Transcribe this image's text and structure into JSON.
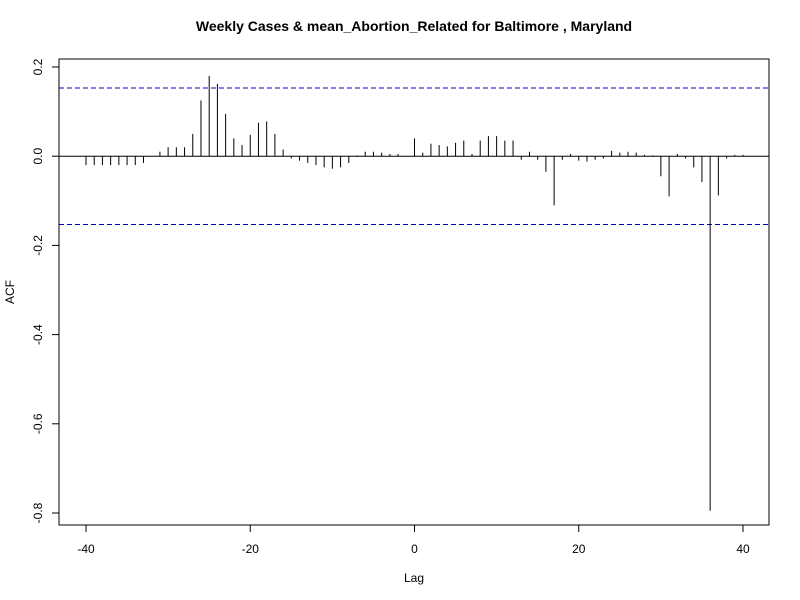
{
  "chart_data": {
    "type": "bar",
    "title": "Weekly Cases & mean_Abortion_Related for Baltimore , Maryland",
    "xlabel": "Lag",
    "ylabel": "ACF",
    "xlim": [
      -40,
      40
    ],
    "ylim": [
      -0.8,
      0.2
    ],
    "x_ticks": [
      -40,
      -20,
      0,
      20,
      40
    ],
    "y_ticks": [
      -0.8,
      -0.6,
      -0.4,
      -0.2,
      0.0,
      0.2
    ],
    "x_tick_labels": [
      "-40",
      "-20",
      "0",
      "20",
      "40"
    ],
    "y_tick_labels": [
      "-0.8",
      "-0.6",
      "-0.4",
      "-0.2",
      "0.0",
      "0.2"
    ],
    "confidence_bounds": [
      0.153,
      -0.153
    ],
    "colors": {
      "bars": "#000000",
      "bounds": "#0000cc",
      "zero_line": "#000000"
    },
    "lags": [
      -40,
      -39,
      -38,
      -37,
      -36,
      -35,
      -34,
      -33,
      -32,
      -31,
      -30,
      -29,
      -28,
      -27,
      -26,
      -25,
      -24,
      -23,
      -22,
      -21,
      -20,
      -19,
      -18,
      -17,
      -16,
      -15,
      -14,
      -13,
      -12,
      -11,
      -10,
      -9,
      -8,
      -7,
      -6,
      -5,
      -4,
      -3,
      -2,
      -1,
      0,
      1,
      2,
      3,
      4,
      5,
      6,
      7,
      8,
      9,
      10,
      11,
      12,
      13,
      14,
      15,
      16,
      17,
      18,
      19,
      20,
      21,
      22,
      23,
      24,
      25,
      26,
      27,
      28,
      29,
      30,
      31,
      32,
      33,
      34,
      35,
      36,
      37,
      38,
      39,
      40
    ],
    "values": [
      -0.02,
      -0.02,
      -0.02,
      -0.02,
      -0.02,
      -0.02,
      -0.02,
      -0.015,
      0.0,
      0.01,
      0.02,
      0.02,
      0.02,
      0.05,
      0.125,
      0.18,
      0.162,
      0.095,
      0.04,
      0.025,
      0.048,
      0.075,
      0.078,
      0.05,
      0.015,
      -0.005,
      -0.01,
      -0.015,
      -0.02,
      -0.025,
      -0.028,
      -0.025,
      -0.015,
      0.002,
      0.01,
      0.01,
      0.008,
      0.005,
      0.005,
      0.0,
      0.04,
      0.008,
      0.028,
      0.025,
      0.022,
      0.03,
      0.035,
      0.005,
      0.035,
      0.045,
      0.045,
      0.035,
      0.035,
      -0.008,
      0.01,
      -0.008,
      -0.035,
      -0.11,
      -0.008,
      0.005,
      -0.01,
      -0.012,
      -0.008,
      -0.005,
      0.012,
      0.008,
      0.01,
      0.008,
      0.003,
      0.002,
      -0.045,
      -0.09,
      0.005,
      -0.005,
      -0.025,
      -0.058,
      -0.795,
      -0.088,
      -0.005,
      0.003,
      0.003
    ]
  }
}
